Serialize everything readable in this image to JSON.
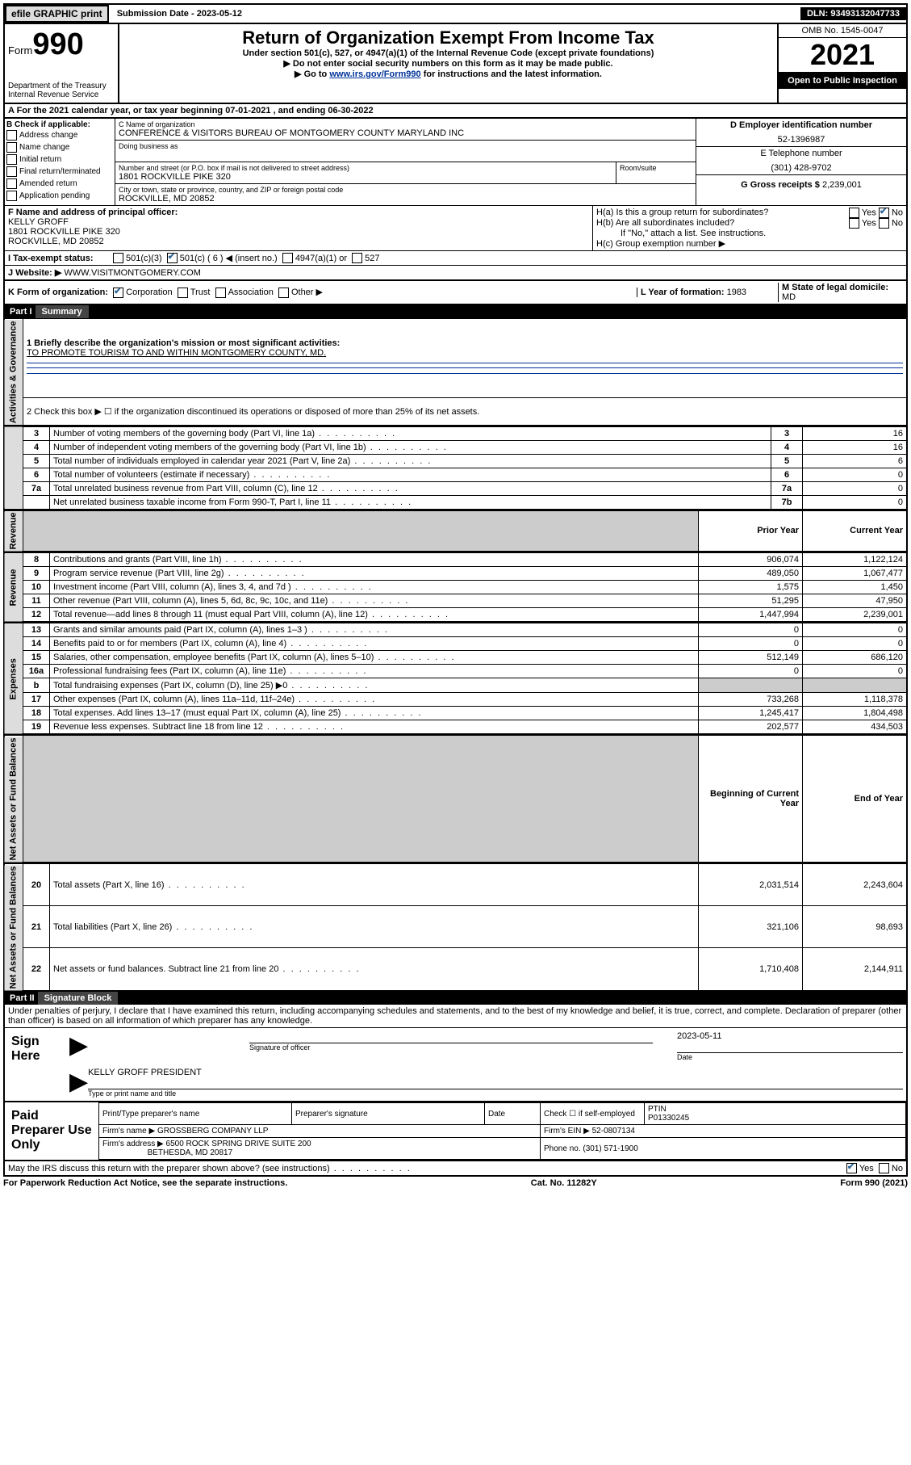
{
  "topbar": {
    "efile": "efile GRAPHIC print",
    "submission_label": "Submission Date - 2023-05-12",
    "dln": "DLN: 93493132047733"
  },
  "header": {
    "form_label": "Form",
    "form_number": "990",
    "dept": "Department of the Treasury",
    "irs": "Internal Revenue Service",
    "title": "Return of Organization Exempt From Income Tax",
    "subtitle1": "Under section 501(c), 527, or 4947(a)(1) of the Internal Revenue Code (except private foundations)",
    "subtitle2": "▶ Do not enter social security numbers on this form as it may be made public.",
    "subtitle3_pre": "▶ Go to ",
    "subtitle3_link": "www.irs.gov/Form990",
    "subtitle3_post": " for instructions and the latest information.",
    "omb": "OMB No. 1545-0047",
    "year": "2021",
    "open": "Open to Public Inspection"
  },
  "A": {
    "text": "A For the 2021 calendar year, or tax year beginning 07-01-2021  , and ending 06-30-2022"
  },
  "B": {
    "label": "B Check if applicable:",
    "items": [
      "Address change",
      "Name change",
      "Initial return",
      "Final return/terminated",
      "Amended return",
      "Application pending"
    ]
  },
  "C": {
    "name_label": "C Name of organization",
    "name": "CONFERENCE & VISITORS BUREAU OF MONTGOMERY COUNTY MARYLAND INC",
    "dba_label": "Doing business as",
    "street_label": "Number and street (or P.O. box if mail is not delivered to street address)",
    "room_label": "Room/suite",
    "street": "1801 ROCKVILLE PIKE 320",
    "city_label": "City or town, state or province, country, and ZIP or foreign postal code",
    "city": "ROCKVILLE, MD  20852"
  },
  "D": {
    "label": "D Employer identification number",
    "value": "52-1396987"
  },
  "E": {
    "label": "E Telephone number",
    "value": "(301) 428-9702"
  },
  "G": {
    "label": "G Gross receipts $",
    "value": "2,239,001"
  },
  "F": {
    "label": "F Name and address of principal officer:",
    "name": "KELLY GROFF",
    "addr1": "1801 ROCKVILLE PIKE 320",
    "addr2": "ROCKVILLE, MD  20852"
  },
  "H": {
    "a": "H(a)  Is this a group return for subordinates?",
    "b": "H(b)  Are all subordinates included?",
    "b_note": "If \"No,\" attach a list. See instructions.",
    "c": "H(c)  Group exemption number ▶"
  },
  "I": {
    "label": "I  Tax-exempt status:",
    "opts": [
      "501(c)(3)",
      "501(c) ( 6 ) ◀ (insert no.)",
      "4947(a)(1) or",
      "527"
    ]
  },
  "J": {
    "label": "J  Website: ▶",
    "value": "WWW.VISITMONTGOMERY.COM"
  },
  "K": {
    "label": "K Form of organization:",
    "opts": [
      "Corporation",
      "Trust",
      "Association",
      "Other ▶"
    ]
  },
  "L": {
    "label": "L Year of formation:",
    "value": "1983"
  },
  "M": {
    "label": "M State of legal domicile:",
    "value": "MD"
  },
  "part1_header": "Part I",
  "part1_title": "Summary",
  "summary": {
    "line1_label": "1  Briefly describe the organization's mission or most significant activities:",
    "line1_value": "TO PROMOTE TOURISM TO AND WITHIN MONTGOMERY COUNTY, MD.",
    "line2": "2  Check this box ▶ ☐  if the organization discontinued its operations or disposed of more than 25% of its net assets.",
    "rows_gov": [
      {
        "n": "3",
        "label": "Number of voting members of the governing body (Part VI, line 1a)",
        "box": "3",
        "val": "16"
      },
      {
        "n": "4",
        "label": "Number of independent voting members of the governing body (Part VI, line 1b)",
        "box": "4",
        "val": "16"
      },
      {
        "n": "5",
        "label": "Total number of individuals employed in calendar year 2021 (Part V, line 2a)",
        "box": "5",
        "val": "6"
      },
      {
        "n": "6",
        "label": "Total number of volunteers (estimate if necessary)",
        "box": "6",
        "val": "0"
      },
      {
        "n": "7a",
        "label": "Total unrelated business revenue from Part VIII, column (C), line 12",
        "box": "7a",
        "val": "0"
      },
      {
        "n": "",
        "label": "Net unrelated business taxable income from Form 990-T, Part I, line 11",
        "box": "7b",
        "val": "0"
      }
    ],
    "col_headers": {
      "prior": "Prior Year",
      "current": "Current Year"
    },
    "rows_rev": [
      {
        "n": "8",
        "label": "Contributions and grants (Part VIII, line 1h)",
        "p": "906,074",
        "c": "1,122,124"
      },
      {
        "n": "9",
        "label": "Program service revenue (Part VIII, line 2g)",
        "p": "489,050",
        "c": "1,067,477"
      },
      {
        "n": "10",
        "label": "Investment income (Part VIII, column (A), lines 3, 4, and 7d )",
        "p": "1,575",
        "c": "1,450"
      },
      {
        "n": "11",
        "label": "Other revenue (Part VIII, column (A), lines 5, 6d, 8c, 9c, 10c, and 11e)",
        "p": "51,295",
        "c": "47,950"
      },
      {
        "n": "12",
        "label": "Total revenue—add lines 8 through 11 (must equal Part VIII, column (A), line 12)",
        "p": "1,447,994",
        "c": "2,239,001"
      }
    ],
    "rows_exp": [
      {
        "n": "13",
        "label": "Grants and similar amounts paid (Part IX, column (A), lines 1–3 )",
        "p": "0",
        "c": "0"
      },
      {
        "n": "14",
        "label": "Benefits paid to or for members (Part IX, column (A), line 4)",
        "p": "0",
        "c": "0"
      },
      {
        "n": "15",
        "label": "Salaries, other compensation, employee benefits (Part IX, column (A), lines 5–10)",
        "p": "512,149",
        "c": "686,120"
      },
      {
        "n": "16a",
        "label": "Professional fundraising fees (Part IX, column (A), line 11e)",
        "p": "0",
        "c": "0"
      },
      {
        "n": "b",
        "label": "Total fundraising expenses (Part IX, column (D), line 25) ▶0",
        "p": "",
        "c": "",
        "grey": true
      },
      {
        "n": "17",
        "label": "Other expenses (Part IX, column (A), lines 11a–11d, 11f–24e)",
        "p": "733,268",
        "c": "1,118,378"
      },
      {
        "n": "18",
        "label": "Total expenses. Add lines 13–17 (must equal Part IX, column (A), line 25)",
        "p": "1,245,417",
        "c": "1,804,498"
      },
      {
        "n": "19",
        "label": "Revenue less expenses. Subtract line 18 from line 12",
        "p": "202,577",
        "c": "434,503"
      }
    ],
    "net_headers": {
      "beg": "Beginning of Current Year",
      "end": "End of Year"
    },
    "rows_net": [
      {
        "n": "20",
        "label": "Total assets (Part X, line 16)",
        "p": "2,031,514",
        "c": "2,243,604"
      },
      {
        "n": "21",
        "label": "Total liabilities (Part X, line 26)",
        "p": "321,106",
        "c": "98,693"
      },
      {
        "n": "22",
        "label": "Net assets or fund balances. Subtract line 21 from line 20",
        "p": "1,710,408",
        "c": "2,144,911"
      }
    ],
    "vert_labels": {
      "gov": "Activities & Governance",
      "rev": "Revenue",
      "exp": "Expenses",
      "net": "Net Assets or Fund Balances"
    }
  },
  "part2_header": "Part II",
  "part2_title": "Signature Block",
  "penalties": "Under penalties of perjury, I declare that I have examined this return, including accompanying schedules and statements, and to the best of my knowledge and belief, it is true, correct, and complete. Declaration of preparer (other than officer) is based on all information of which preparer has any knowledge.",
  "sign": {
    "here": "Sign Here",
    "sig_label": "Signature of officer",
    "date_label": "Date",
    "date": "2023-05-11",
    "name": "KELLY GROFF  PRESIDENT",
    "name_label": "Type or print name and title"
  },
  "preparer": {
    "title": "Paid Preparer Use Only",
    "h1": "Print/Type preparer's name",
    "h2": "Preparer's signature",
    "h3": "Date",
    "h4_pre": "Check ☐ if self-employed",
    "ptin_label": "PTIN",
    "ptin": "P01330245",
    "firm_name_label": "Firm's name    ▶",
    "firm_name": "GROSSBERG COMPANY LLP",
    "firm_ein_label": "Firm's EIN ▶",
    "firm_ein": "52-0807134",
    "firm_addr_label": "Firm's address ▶",
    "firm_addr1": "6500 ROCK SPRING DRIVE SUITE 200",
    "firm_addr2": "BETHESDA, MD  20817",
    "phone_label": "Phone no.",
    "phone": "(301) 571-1900"
  },
  "may_irs": "May the IRS discuss this return with the preparer shown above? (see instructions)",
  "footer": {
    "left": "For Paperwork Reduction Act Notice, see the separate instructions.",
    "mid": "Cat. No. 11282Y",
    "right": "Form 990 (2021)"
  },
  "yes": "Yes",
  "no": "No"
}
